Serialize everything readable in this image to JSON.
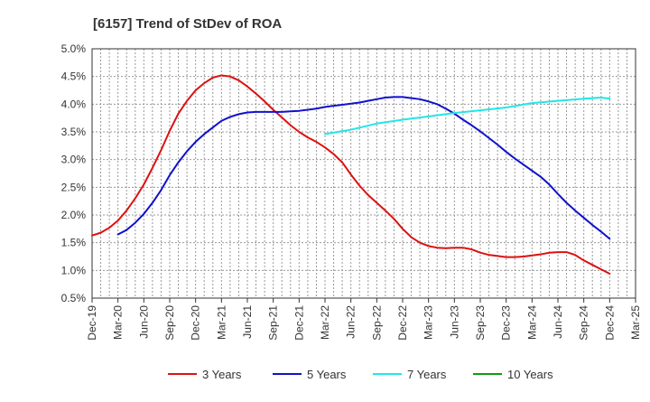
{
  "chart_data": {
    "type": "line",
    "title": "[6157]  Trend of StDev of ROA",
    "xlabel": "",
    "ylabel": "",
    "x_ticks": [
      "Dec-19",
      "Mar-20",
      "Jun-20",
      "Sep-20",
      "Dec-20",
      "Mar-21",
      "Jun-21",
      "Sep-21",
      "Dec-21",
      "Mar-22",
      "Jun-22",
      "Sep-22",
      "Dec-22",
      "Mar-23",
      "Jun-23",
      "Sep-23",
      "Dec-23",
      "Mar-24",
      "Jun-24",
      "Sep-24",
      "Dec-24",
      "Mar-25"
    ],
    "y_ticks": [
      "0.5%",
      "1.0%",
      "1.5%",
      "2.0%",
      "2.5%",
      "3.0%",
      "3.5%",
      "4.0%",
      "4.5%",
      "5.0%"
    ],
    "ylim": [
      0.5,
      5.0
    ],
    "y_unit": "%",
    "grid": true,
    "grid_style": "dotted",
    "legend_position": "bottom",
    "series": [
      {
        "name": "3 Years",
        "color": "#dd1111",
        "points": [
          [
            "Dec-19",
            1.63
          ],
          [
            "Jan-20",
            1.68
          ],
          [
            "Feb-20",
            1.77
          ],
          [
            "Mar-20",
            1.9
          ],
          [
            "Apr-20",
            2.08
          ],
          [
            "May-20",
            2.3
          ],
          [
            "Jun-20",
            2.55
          ],
          [
            "Jul-20",
            2.85
          ],
          [
            "Aug-20",
            3.17
          ],
          [
            "Sep-20",
            3.52
          ],
          [
            "Oct-20",
            3.83
          ],
          [
            "Nov-20",
            4.06
          ],
          [
            "Dec-20",
            4.25
          ],
          [
            "Jan-21",
            4.38
          ],
          [
            "Feb-21",
            4.48
          ],
          [
            "Mar-21",
            4.52
          ],
          [
            "Apr-21",
            4.5
          ],
          [
            "May-21",
            4.43
          ],
          [
            "Jun-21",
            4.32
          ],
          [
            "Jul-21",
            4.19
          ],
          [
            "Aug-21",
            4.05
          ],
          [
            "Sep-21",
            3.9
          ],
          [
            "Oct-21",
            3.76
          ],
          [
            "Nov-21",
            3.62
          ],
          [
            "Dec-21",
            3.5
          ],
          [
            "Jan-22",
            3.4
          ],
          [
            "Feb-22",
            3.32
          ],
          [
            "Mar-22",
            3.22
          ],
          [
            "Apr-22",
            3.1
          ],
          [
            "May-22",
            2.95
          ],
          [
            "Jun-22",
            2.73
          ],
          [
            "Jul-22",
            2.53
          ],
          [
            "Aug-22",
            2.36
          ],
          [
            "Sep-22",
            2.22
          ],
          [
            "Oct-22",
            2.08
          ],
          [
            "Nov-22",
            1.93
          ],
          [
            "Dec-22",
            1.75
          ],
          [
            "Jan-23",
            1.6
          ],
          [
            "Feb-23",
            1.5
          ],
          [
            "Mar-23",
            1.44
          ],
          [
            "Apr-23",
            1.41
          ],
          [
            "May-23",
            1.4
          ],
          [
            "Jun-23",
            1.41
          ],
          [
            "Jul-23",
            1.41
          ],
          [
            "Aug-23",
            1.38
          ],
          [
            "Sep-23",
            1.32
          ],
          [
            "Oct-23",
            1.28
          ],
          [
            "Nov-23",
            1.26
          ],
          [
            "Dec-23",
            1.24
          ],
          [
            "Jan-24",
            1.24
          ],
          [
            "Feb-24",
            1.25
          ],
          [
            "Mar-24",
            1.27
          ],
          [
            "Apr-24",
            1.29
          ],
          [
            "May-24",
            1.32
          ],
          [
            "Jun-24",
            1.33
          ],
          [
            "Jul-24",
            1.33
          ],
          [
            "Aug-24",
            1.28
          ],
          [
            "Sep-24",
            1.18
          ],
          [
            "Oct-24",
            1.1
          ],
          [
            "Nov-24",
            1.02
          ],
          [
            "Dec-24",
            0.94
          ]
        ]
      },
      {
        "name": "5 Years",
        "color": "#1111cc",
        "points": [
          [
            "Mar-20",
            1.65
          ],
          [
            "Apr-20",
            1.73
          ],
          [
            "May-20",
            1.86
          ],
          [
            "Jun-20",
            2.02
          ],
          [
            "Jul-20",
            2.22
          ],
          [
            "Aug-20",
            2.45
          ],
          [
            "Sep-20",
            2.72
          ],
          [
            "Oct-20",
            2.95
          ],
          [
            "Nov-20",
            3.15
          ],
          [
            "Dec-20",
            3.32
          ],
          [
            "Jan-21",
            3.46
          ],
          [
            "Feb-21",
            3.58
          ],
          [
            "Mar-21",
            3.7
          ],
          [
            "Apr-21",
            3.77
          ],
          [
            "May-21",
            3.82
          ],
          [
            "Jun-21",
            3.85
          ],
          [
            "Jul-21",
            3.86
          ],
          [
            "Aug-21",
            3.86
          ],
          [
            "Sep-21",
            3.86
          ],
          [
            "Oct-21",
            3.86
          ],
          [
            "Nov-21",
            3.87
          ],
          [
            "Dec-21",
            3.88
          ],
          [
            "Jan-22",
            3.9
          ],
          [
            "Feb-22",
            3.92
          ],
          [
            "Mar-22",
            3.95
          ],
          [
            "Apr-22",
            3.97
          ],
          [
            "May-22",
            3.99
          ],
          [
            "Jun-22",
            4.01
          ],
          [
            "Jul-22",
            4.03
          ],
          [
            "Aug-22",
            4.06
          ],
          [
            "Sep-22",
            4.09
          ],
          [
            "Oct-22",
            4.12
          ],
          [
            "Nov-22",
            4.13
          ],
          [
            "Dec-22",
            4.13
          ],
          [
            "Jan-23",
            4.11
          ],
          [
            "Feb-23",
            4.09
          ],
          [
            "Mar-23",
            4.05
          ],
          [
            "Apr-23",
            4.0
          ],
          [
            "May-23",
            3.92
          ],
          [
            "Jun-23",
            3.83
          ],
          [
            "Jul-23",
            3.72
          ],
          [
            "Aug-23",
            3.62
          ],
          [
            "Sep-23",
            3.51
          ],
          [
            "Oct-23",
            3.39
          ],
          [
            "Nov-23",
            3.27
          ],
          [
            "Dec-23",
            3.14
          ],
          [
            "Jan-24",
            3.02
          ],
          [
            "Feb-24",
            2.91
          ],
          [
            "Mar-24",
            2.8
          ],
          [
            "Apr-24",
            2.69
          ],
          [
            "May-24",
            2.55
          ],
          [
            "Jun-24",
            2.38
          ],
          [
            "Jul-24",
            2.22
          ],
          [
            "Aug-24",
            2.08
          ],
          [
            "Sep-24",
            1.95
          ],
          [
            "Oct-24",
            1.82
          ],
          [
            "Nov-24",
            1.7
          ],
          [
            "Dec-24",
            1.57
          ]
        ]
      },
      {
        "name": "7 Years",
        "color": "#22e6e6",
        "points": [
          [
            "Mar-22",
            3.46
          ],
          [
            "Jun-22",
            3.54
          ],
          [
            "Sep-22",
            3.65
          ],
          [
            "Dec-22",
            3.72
          ],
          [
            "Mar-23",
            3.78
          ],
          [
            "Jun-23",
            3.84
          ],
          [
            "Sep-23",
            3.89
          ],
          [
            "Dec-23",
            3.94
          ],
          [
            "Mar-24",
            4.02
          ],
          [
            "Jun-24",
            4.06
          ],
          [
            "Sep-24",
            4.1
          ],
          [
            "Nov-24",
            4.12
          ],
          [
            "Dec-24",
            4.1
          ]
        ]
      },
      {
        "name": "10 Years",
        "color": "#119911",
        "points": []
      }
    ]
  }
}
